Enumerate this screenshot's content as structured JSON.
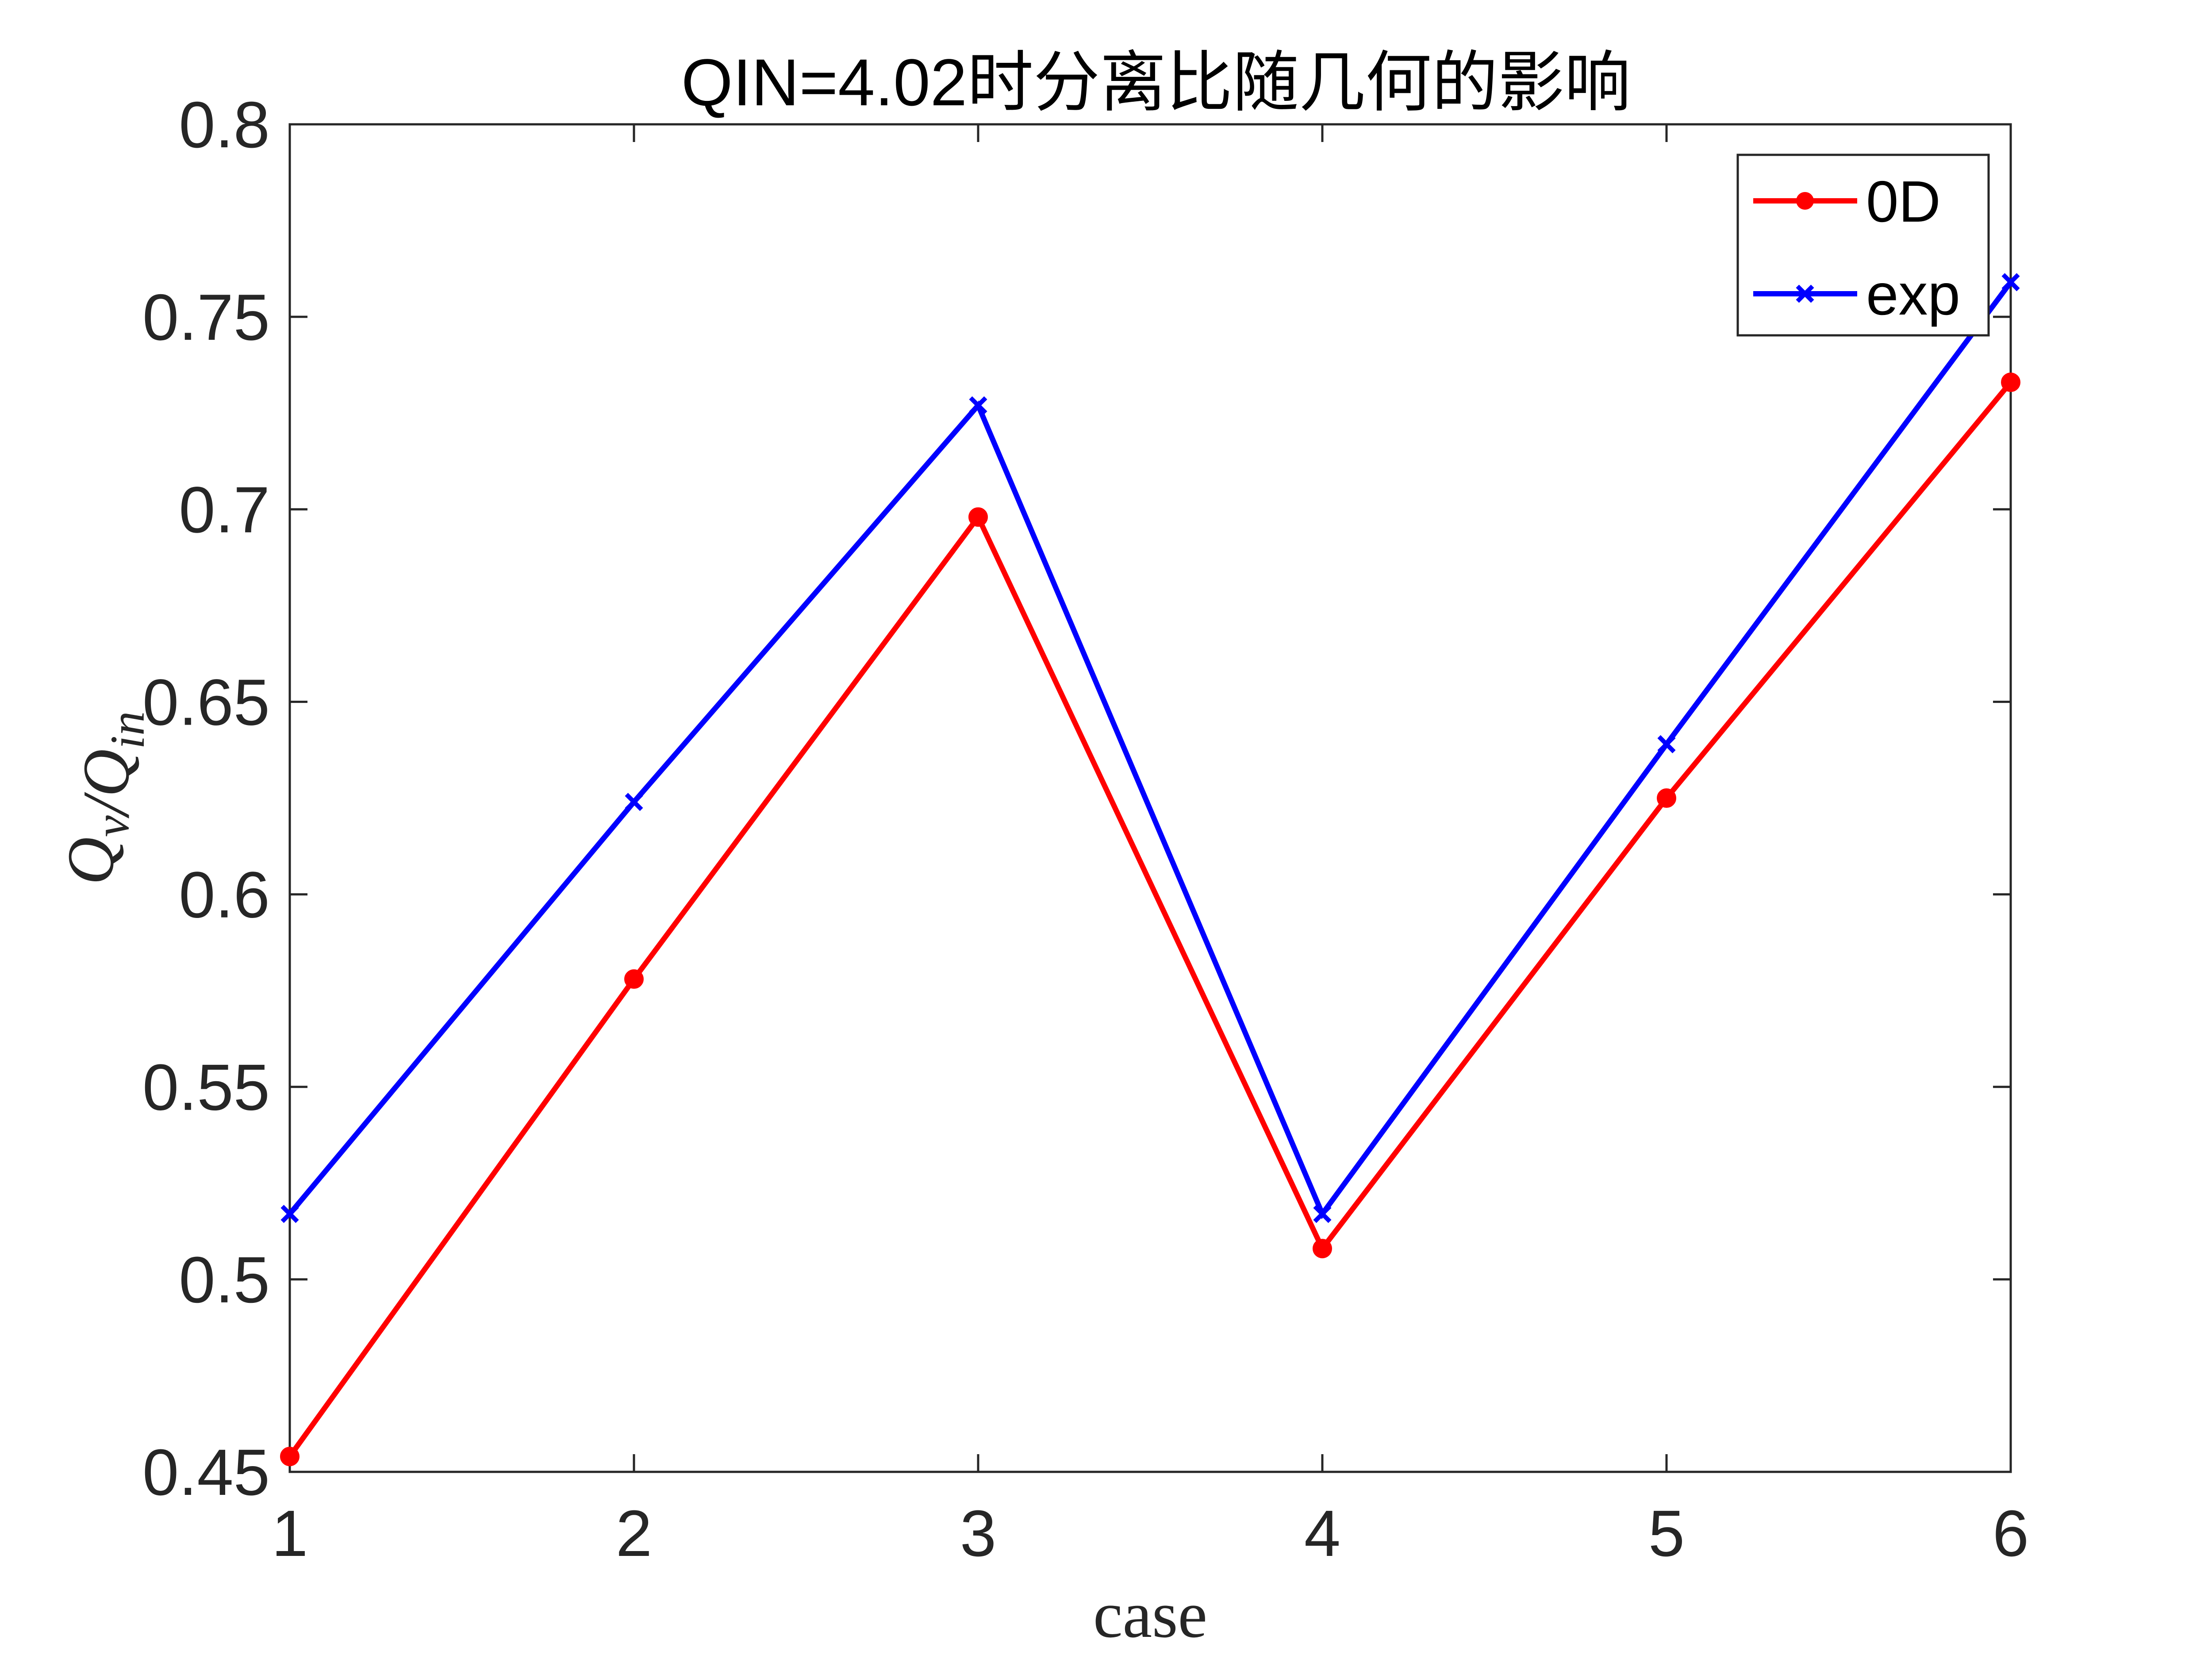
{
  "chart_data": {
    "type": "line",
    "title": "QIN=4.02时分离比随几何的影响",
    "xlabel": "case",
    "ylabel": "Q_v/Q_in",
    "x": [
      1,
      2,
      3,
      4,
      5,
      6
    ],
    "xlim": [
      1,
      6
    ],
    "ylim": [
      0.45,
      0.8
    ],
    "xticks": [
      "1",
      "2",
      "3",
      "4",
      "5",
      "6"
    ],
    "yticks": [
      "0.45",
      "0.5",
      "0.55",
      "0.6",
      "0.65",
      "0.7",
      "0.75",
      "0.8"
    ],
    "grid": false,
    "legend_position": "top-right",
    "series": [
      {
        "name": "0D",
        "values": [
          0.454,
          0.578,
          0.698,
          0.508,
          0.625,
          0.733
        ],
        "color": "#ff0000",
        "marker": "filled-circle"
      },
      {
        "name": "exp",
        "values": [
          0.517,
          0.624,
          0.727,
          0.517,
          0.639,
          0.759
        ],
        "color": "#0000ff",
        "marker": "x"
      }
    ]
  }
}
